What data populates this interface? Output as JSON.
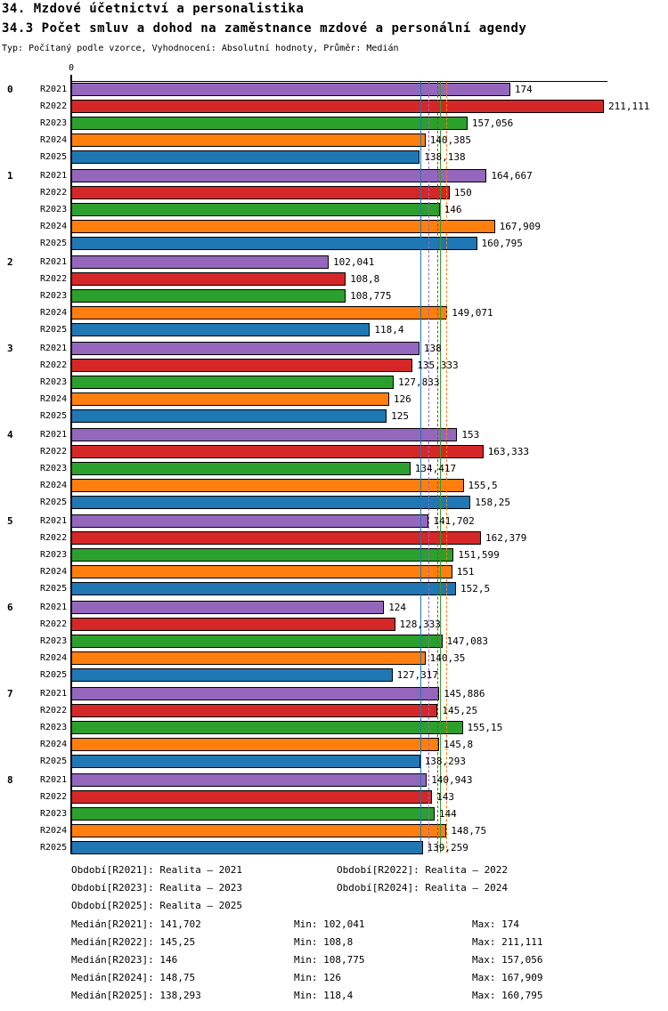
{
  "page": {
    "title": "34. Mzdové účetnictví a personalistika",
    "subtitle": "34.3 Počet smluv a dohod na zaměstnance mzdové a personální agendy",
    "meta": "Typ: Počítaný podle vzorce, Vyhodnocení: Absolutní hodnoty, Průměr: Medián"
  },
  "chart_data": {
    "type": "bar",
    "orientation": "horizontal",
    "x_axis": {
      "zero_label": "0",
      "min": 0,
      "max_value_shown": 211.111,
      "grid": false
    },
    "categories": [
      "0",
      "1",
      "2",
      "3",
      "4",
      "5",
      "6",
      "7",
      "8"
    ],
    "series": [
      {
        "name": "R2021",
        "color": "#9467bd",
        "median": 141.702,
        "median_line_style": "dashed",
        "values": [
          174,
          164.667,
          102.041,
          138,
          153,
          141.702,
          124,
          145.886,
          140.943
        ]
      },
      {
        "name": "R2022",
        "color": "#d62728",
        "median": 145.25,
        "median_line_style": "dashed",
        "values": [
          211.111,
          150,
          108.8,
          135.333,
          163.333,
          162.379,
          128.333,
          145.25,
          143
        ]
      },
      {
        "name": "R2023",
        "color": "#2ca02c",
        "median": 146,
        "median_line_style": "solid",
        "values": [
          157.056,
          146,
          108.775,
          127.833,
          134.417,
          151.599,
          147.083,
          155.15,
          144
        ]
      },
      {
        "name": "R2024",
        "color": "#ff7f0e",
        "median": 148.75,
        "median_line_style": "dashed",
        "values": [
          140.385,
          167.909,
          149.071,
          126,
          155.5,
          151,
          140.35,
          145.8,
          148.75
        ]
      },
      {
        "name": "R2025",
        "color": "#1f77b4",
        "median": 138.293,
        "median_line_style": "solid",
        "values": [
          138.138,
          160.795,
          118.4,
          125,
          158.25,
          152.5,
          127.317,
          138.293,
          139.259
        ]
      }
    ],
    "value_labels_by_group": [
      [
        "174",
        "211,111",
        "157,056",
        "140,385",
        "138,138"
      ],
      [
        "164,667",
        "150",
        "146",
        "167,909",
        "160,795"
      ],
      [
        "102,041",
        "108,8",
        "108,775",
        "149,071",
        "118,4"
      ],
      [
        "138",
        "135,333",
        "127,833",
        "126",
        "125"
      ],
      [
        "153",
        "163,333",
        "134,417",
        "155,5",
        "158,25"
      ],
      [
        "141,702",
        "162,379",
        "151,599",
        "151",
        "152,5"
      ],
      [
        "124",
        "128,333",
        "147,083",
        "140,35",
        "127,317"
      ],
      [
        "145,886",
        "145,25",
        "155,15",
        "145,8",
        "138,293"
      ],
      [
        "140,943",
        "143",
        "144",
        "148,75",
        "139,259"
      ]
    ]
  },
  "legend": {
    "items": [
      "Období[R2021]: Realita – 2021",
      "Období[R2022]: Realita – 2022",
      "Období[R2023]: Realita – 2023",
      "Období[R2024]: Realita – 2024",
      "Období[R2025]: Realita – 2025"
    ]
  },
  "stats": {
    "rows": [
      {
        "median": "Medián[R2021]: 141,702",
        "min": "Min: 102,041",
        "max": "Max: 174"
      },
      {
        "median": "Medián[R2022]: 145,25",
        "min": "Min: 108,8",
        "max": "Max: 211,111"
      },
      {
        "median": "Medián[R2023]: 146",
        "min": "Min: 108,775",
        "max": "Max: 157,056"
      },
      {
        "median": "Medián[R2024]: 148,75",
        "min": "Min: 126",
        "max": "Max: 167,909"
      },
      {
        "median": "Medián[R2025]: 138,293",
        "min": "Min: 118,4",
        "max": "Max: 160,795"
      }
    ]
  }
}
